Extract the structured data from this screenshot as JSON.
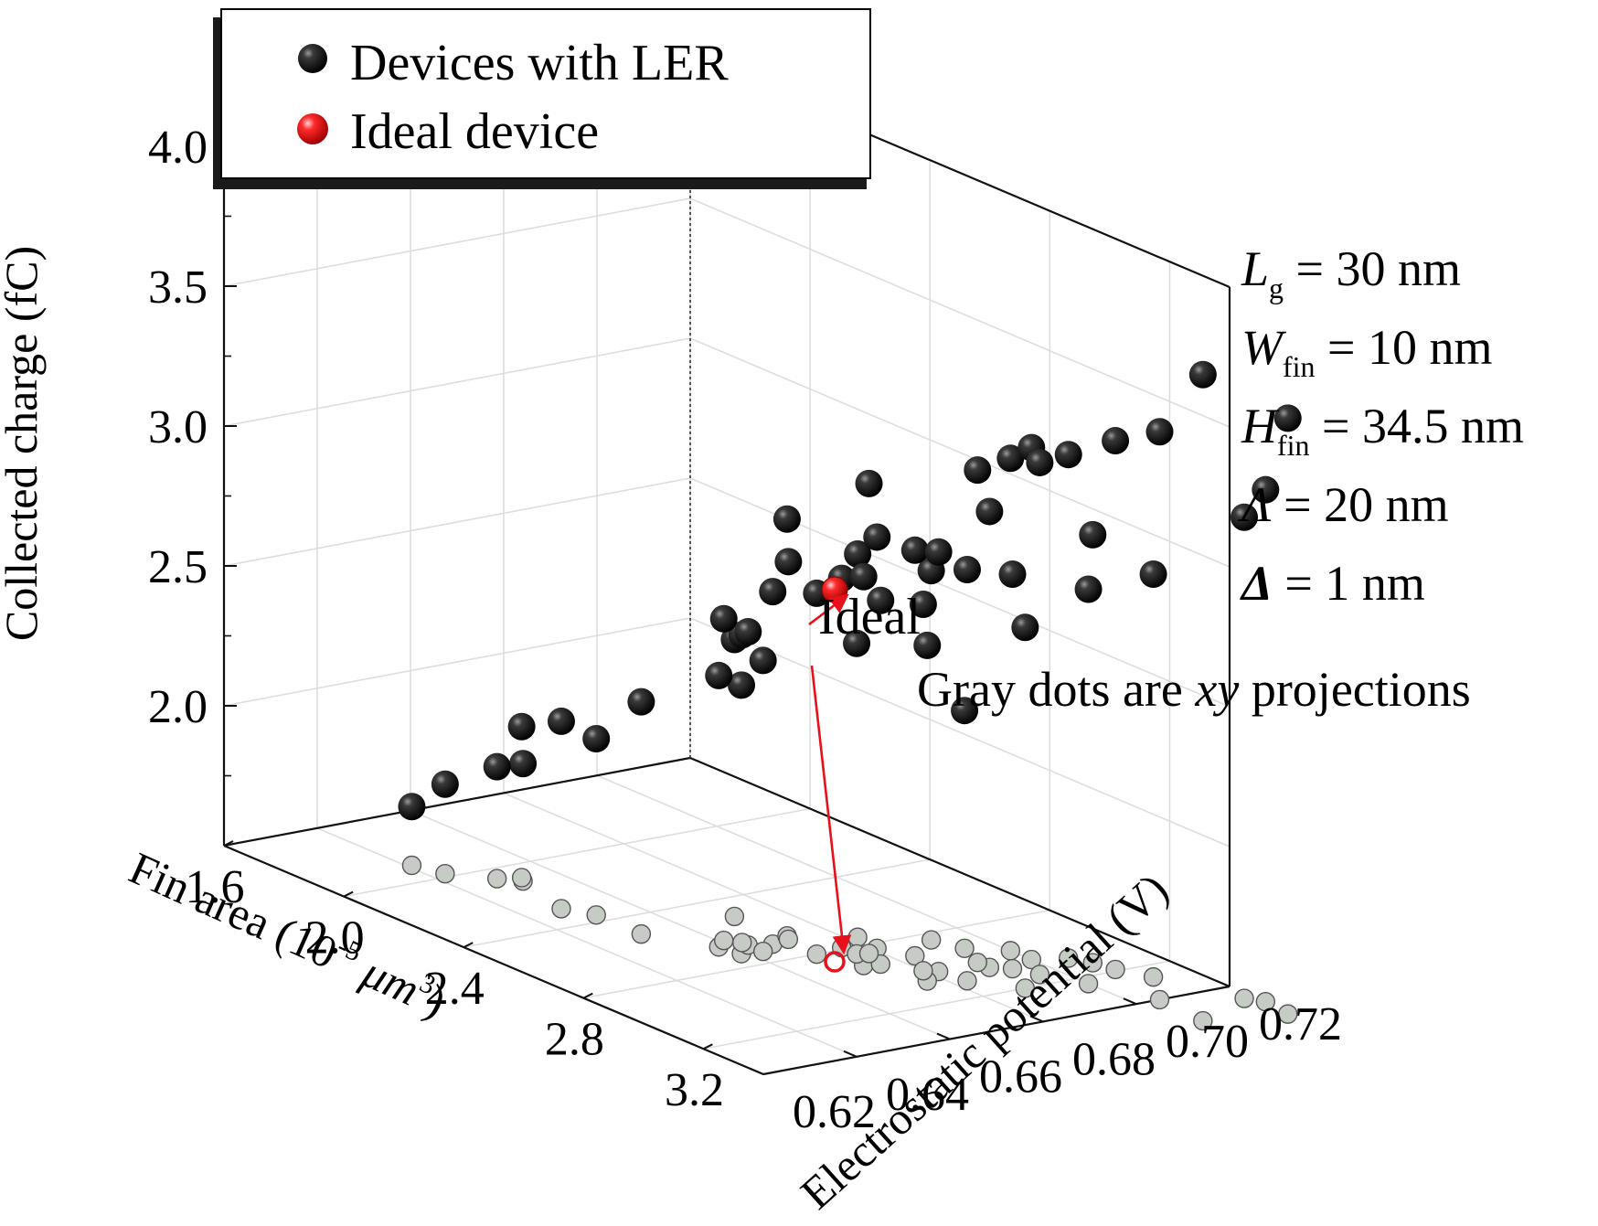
{
  "legend": {
    "entries": [
      {
        "label": "Devices with LER",
        "color": "#111111"
      },
      {
        "label": "Ideal device",
        "color": "#e8101a"
      }
    ]
  },
  "params": [
    {
      "sym": "L",
      "sub": "g",
      "rest": " = 30 nm"
    },
    {
      "sym": "W",
      "sub": "fin",
      "rest": " = 10 nm"
    },
    {
      "sym": "H",
      "sub": "fin",
      "rest": " = 34.5 nm"
    },
    {
      "sym": "Λ",
      "sub": "",
      "rest": " = 20 nm"
    },
    {
      "sym": "Δ",
      "sub": "",
      "rest": " = 1 nm"
    }
  ],
  "annotations": {
    "ideal_label": "Ideal",
    "gray_note_prefix": "Gray dots are ",
    "gray_note_italic": "xy",
    "gray_note_suffix": " projections"
  },
  "chart_data": {
    "type": "scatter3d",
    "zlabel": "Collected charge (fC)",
    "xlabel_prefix": "Fin area (10",
    "xlabel_exp": "-5",
    "xlabel_suffix": " μm",
    "xlabel_unit_exp": "3",
    "xlabel_close": ")",
    "ylabel": "Electrostatic potential (V)",
    "xlim": [
      1.6,
      3.4
    ],
    "ylim": [
      0.62,
      0.72
    ],
    "zlim": [
      1.5,
      4.0
    ],
    "xticks": [
      "1.6",
      "2.0",
      "2.4",
      "2.8",
      "3.2"
    ],
    "yticks": [
      "0.62",
      "0.64",
      "0.66",
      "0.68",
      "0.70",
      "0.72"
    ],
    "zticks": [
      "2.0",
      "2.5",
      "3.0",
      "3.5",
      "4.0"
    ],
    "grid": true,
    "legend_position": "top-left",
    "series": [
      {
        "name": "Devices with LER",
        "color": "#111111",
        "points": [
          [
            1.9,
            0.641,
            1.71
          ],
          [
            1.98,
            0.643,
            1.82
          ],
          [
            2.06,
            0.649,
            1.9
          ],
          [
            2.1,
            0.652,
            1.92
          ],
          [
            2.08,
            0.653,
            2.04
          ],
          [
            2.29,
            0.648,
            2.17
          ],
          [
            2.36,
            0.651,
            2.13
          ],
          [
            2.51,
            0.651,
            2.33
          ],
          [
            2.66,
            0.658,
            2.47
          ],
          [
            2.63,
            0.661,
            2.65
          ],
          [
            2.72,
            0.659,
            2.46
          ],
          [
            2.68,
            0.663,
            2.62
          ],
          [
            2.7,
            0.667,
            2.76
          ],
          [
            2.79,
            0.676,
            2.82
          ],
          [
            2.75,
            0.682,
            2.87
          ],
          [
            2.67,
            0.672,
            2.99
          ],
          [
            2.51,
            0.671,
            2.49
          ],
          [
            2.73,
            0.663,
            2.54
          ],
          [
            2.66,
            0.663,
            2.6
          ],
          [
            2.69,
            0.671,
            2.85
          ],
          [
            2.8,
            0.67,
            2.79
          ],
          [
            2.91,
            0.673,
            2.89
          ],
          [
            2.83,
            0.681,
            2.97
          ],
          [
            2.91,
            0.684,
            2.95
          ],
          [
            3.02,
            0.682,
            3.0
          ],
          [
            3.08,
            0.694,
            2.91
          ],
          [
            3.1,
            0.683,
            2.97
          ],
          [
            3.06,
            0.677,
            2.7
          ],
          [
            3.0,
            0.68,
            2.81
          ],
          [
            2.92,
            0.676,
            2.8
          ],
          [
            2.84,
            0.676,
            2.61
          ],
          [
            3.2,
            0.689,
            2.79
          ],
          [
            3.24,
            0.7,
            2.91
          ],
          [
            3.27,
            0.712,
            2.94
          ],
          [
            3.13,
            0.708,
            3.03
          ],
          [
            2.98,
            0.7,
            3.26
          ],
          [
            2.85,
            0.678,
            3.18
          ],
          [
            3.05,
            0.691,
            3.13
          ],
          [
            3.01,
            0.691,
            3.26
          ],
          [
            3.05,
            0.7,
            3.33
          ],
          [
            3.14,
            0.696,
            3.33
          ],
          [
            3.08,
            0.706,
            3.3
          ],
          [
            3.19,
            0.709,
            3.39
          ],
          [
            3.4,
            0.705,
            3.53
          ],
          [
            3.56,
            0.704,
            3.81
          ],
          [
            3.61,
            0.719,
            3.63
          ],
          [
            3.52,
            0.72,
            3.33
          ],
          [
            3.48,
            0.718,
            3.22
          ],
          [
            2.84,
            0.692,
            2.82
          ],
          [
            2.92,
            0.694,
            2.35
          ]
        ]
      },
      {
        "name": "Ideal device",
        "color": "#e8101a",
        "points": [
          [
            2.86,
            0.67,
            2.83
          ]
        ]
      }
    ]
  }
}
